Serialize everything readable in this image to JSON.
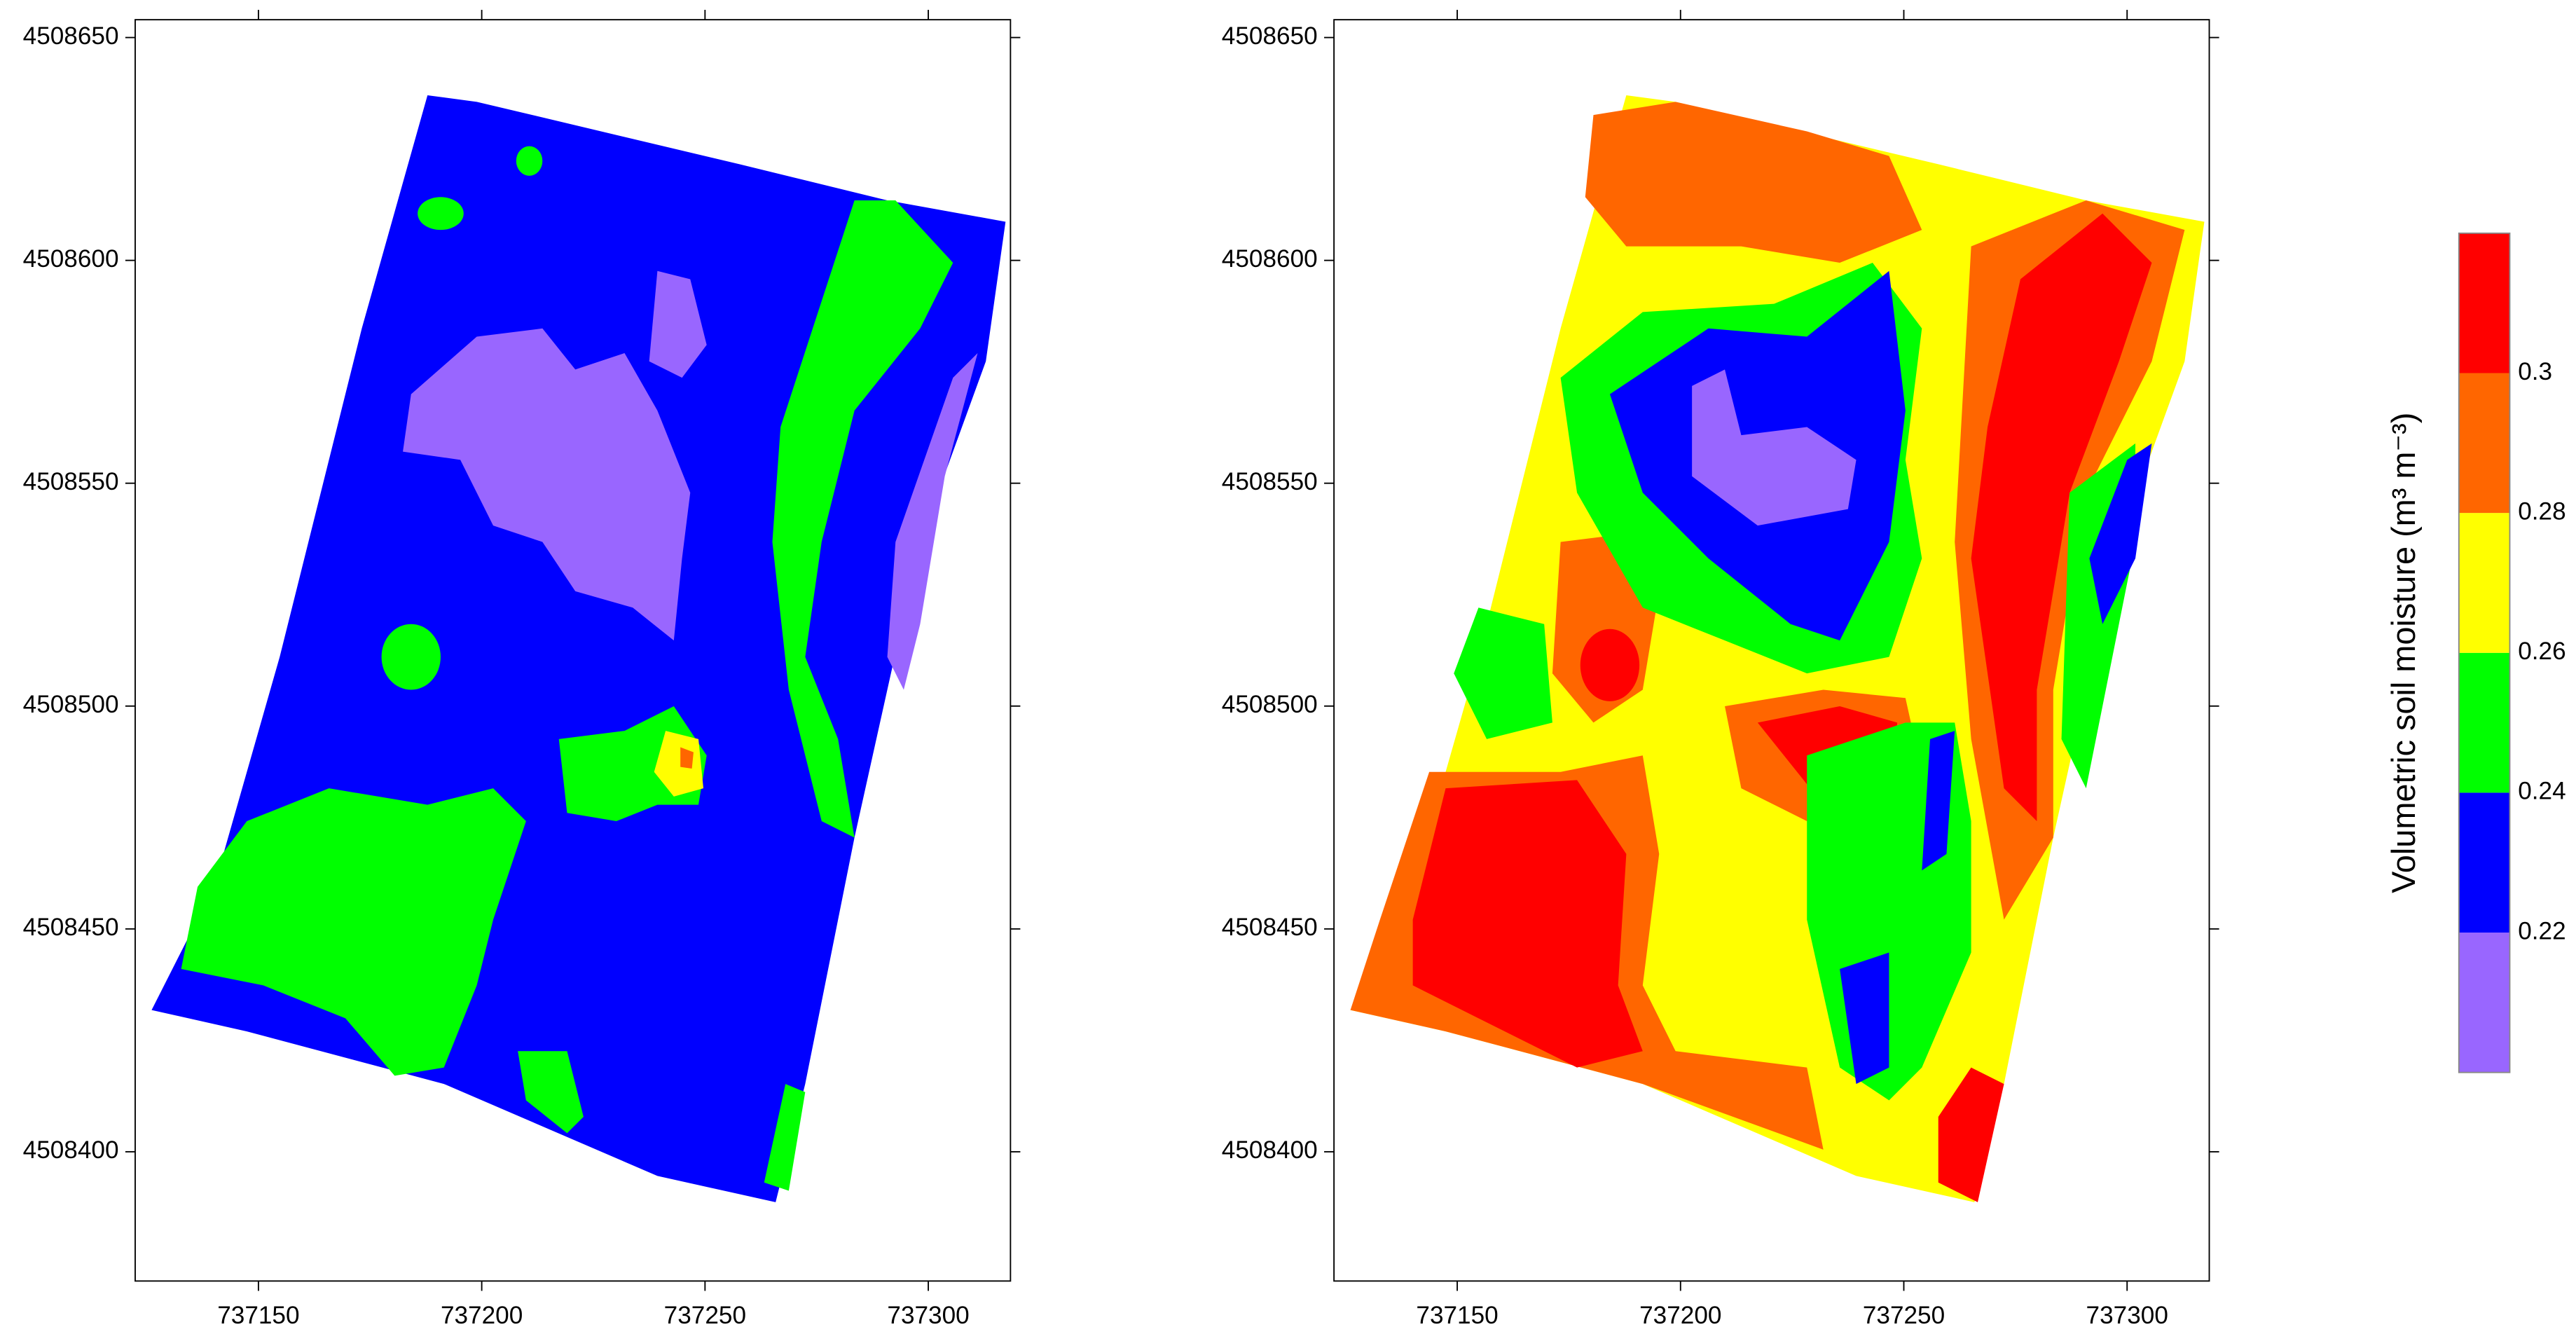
{
  "chart_data": [
    {
      "type": "contour",
      "xlim": [
        737122.4,
        737318.4
      ],
      "ylim": [
        4508371,
        4508654
      ],
      "xticks": [
        737150,
        737200,
        737250,
        737300
      ],
      "yticks": [
        4508400,
        4508450,
        4508500,
        4508550,
        4508600,
        4508650
      ]
    },
    {
      "type": "contour",
      "xlim": [
        737122.4,
        737318.4
      ],
      "ylim": [
        4508371,
        4508654
      ],
      "xticks": [
        737150,
        737200,
        737250,
        737300
      ],
      "yticks": [
        4508400,
        4508450,
        4508500,
        4508550,
        4508600,
        4508650
      ]
    },
    {
      "type": "colorbar",
      "label": "Volumetric soil moisture (m³ m⁻³)",
      "lim": [
        0.2,
        0.32
      ],
      "ticks": [
        0.22,
        0.24,
        0.26,
        0.28,
        0.3
      ],
      "colors": [
        "#9966ff",
        "#0000ff",
        "#00ff00",
        "#ffff00",
        "#ff6600",
        "#ff0000"
      ]
    }
  ]
}
